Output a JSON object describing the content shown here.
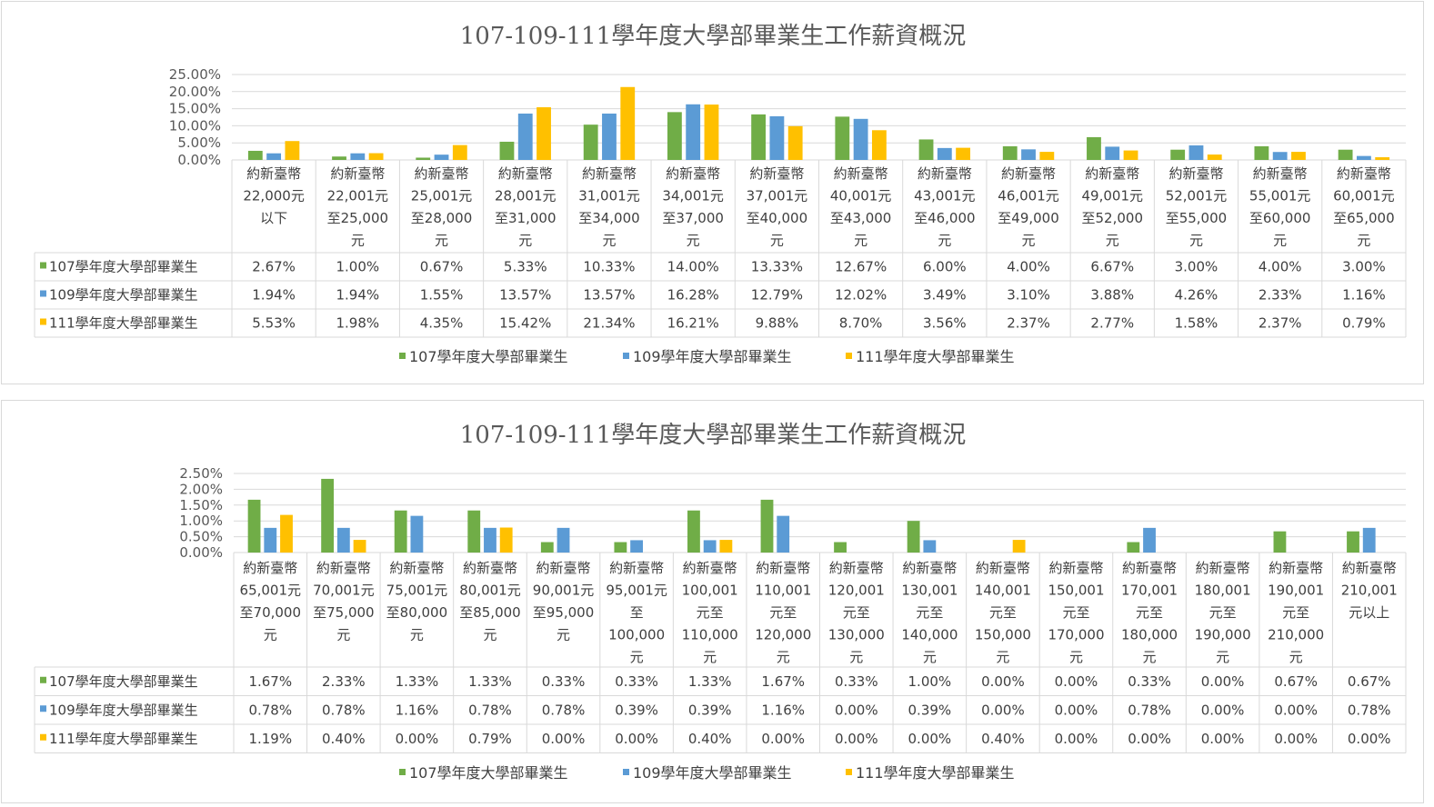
{
  "chart_data": [
    {
      "type": "bar",
      "title": "107-109-111學年度大學部畢業生工作薪資概況",
      "ylim": [
        0,
        25
      ],
      "yticks": [
        "25.00%",
        "20.00%",
        "15.00%",
        "10.00%",
        "5.00%",
        "0.00%"
      ],
      "grid": true,
      "legend_position": "bottom",
      "categories": [
        [
          "約新臺幣",
          "22,000元",
          "以下"
        ],
        [
          "約新臺幣",
          "22,001元",
          "至25,000",
          "元"
        ],
        [
          "約新臺幣",
          "25,001元",
          "至28,000",
          "元"
        ],
        [
          "約新臺幣",
          "28,001元",
          "至31,000",
          "元"
        ],
        [
          "約新臺幣",
          "31,001元",
          "至34,000",
          "元"
        ],
        [
          "約新臺幣",
          "34,001元",
          "至37,000",
          "元"
        ],
        [
          "約新臺幣",
          "37,001元",
          "至40,000",
          "元"
        ],
        [
          "約新臺幣",
          "40,001元",
          "至43,000",
          "元"
        ],
        [
          "約新臺幣",
          "43,001元",
          "至46,000",
          "元"
        ],
        [
          "約新臺幣",
          "46,001元",
          "至49,000",
          "元"
        ],
        [
          "約新臺幣",
          "49,001元",
          "至52,000",
          "元"
        ],
        [
          "約新臺幣",
          "52,001元",
          "至55,000",
          "元"
        ],
        [
          "約新臺幣",
          "55,001元",
          "至60,000",
          "元"
        ],
        [
          "約新臺幣",
          "60,001元",
          "至65,000",
          "元"
        ]
      ],
      "series": [
        {
          "name": "107學年度大學部畢業生",
          "color": "#70ad47",
          "values": [
            2.67,
            1.0,
            0.67,
            5.33,
            10.33,
            14.0,
            13.33,
            12.67,
            6.0,
            4.0,
            6.67,
            3.0,
            4.0,
            3.0
          ],
          "labels": [
            "2.67%",
            "1.00%",
            "0.67%",
            "5.33%",
            "10.33%",
            "14.00%",
            "13.33%",
            "12.67%",
            "6.00%",
            "4.00%",
            "6.67%",
            "3.00%",
            "4.00%",
            "3.00%"
          ]
        },
        {
          "name": "109學年度大學部畢業生",
          "color": "#5b9bd5",
          "values": [
            1.94,
            1.94,
            1.55,
            13.57,
            13.57,
            16.28,
            12.79,
            12.02,
            3.49,
            3.1,
            3.88,
            4.26,
            2.33,
            1.16
          ],
          "labels": [
            "1.94%",
            "1.94%",
            "1.55%",
            "13.57%",
            "13.57%",
            "16.28%",
            "12.79%",
            "12.02%",
            "3.49%",
            "3.10%",
            "3.88%",
            "4.26%",
            "2.33%",
            "1.16%"
          ]
        },
        {
          "name": "111學年度大學部畢業生",
          "color": "#ffc000",
          "values": [
            5.53,
            1.98,
            4.35,
            15.42,
            21.34,
            16.21,
            9.88,
            8.7,
            3.56,
            2.37,
            2.77,
            1.58,
            2.37,
            0.79
          ],
          "labels": [
            "5.53%",
            "1.98%",
            "4.35%",
            "15.42%",
            "21.34%",
            "16.21%",
            "9.88%",
            "8.70%",
            "3.56%",
            "2.37%",
            "2.77%",
            "1.58%",
            "2.37%",
            "0.79%"
          ]
        }
      ]
    },
    {
      "type": "bar",
      "title": "107-109-111學年度大學部畢業生工作薪資概況",
      "ylim": [
        0,
        2.5
      ],
      "yticks": [
        "2.50%",
        "2.00%",
        "1.50%",
        "1.00%",
        "0.50%",
        "0.00%"
      ],
      "grid": true,
      "legend_position": "bottom",
      "categories": [
        [
          "約新臺幣",
          "65,001元",
          "至70,000",
          "元"
        ],
        [
          "約新臺幣",
          "70,001元",
          "至75,000",
          "元"
        ],
        [
          "約新臺幣",
          "75,001元",
          "至80,000",
          "元"
        ],
        [
          "約新臺幣",
          "80,001元",
          "至85,000",
          "元"
        ],
        [
          "約新臺幣",
          "90,001元",
          "至95,000",
          "元"
        ],
        [
          "約新臺幣",
          "95,001元",
          "至",
          "100,000",
          "元"
        ],
        [
          "約新臺幣",
          "100,001",
          "元至",
          "110,000",
          "元"
        ],
        [
          "約新臺幣",
          "110,001",
          "元至",
          "120,000",
          "元"
        ],
        [
          "約新臺幣",
          "120,001",
          "元至",
          "130,000",
          "元"
        ],
        [
          "約新臺幣",
          "130,001",
          "元至",
          "140,000",
          "元"
        ],
        [
          "約新臺幣",
          "140,001",
          "元至",
          "150,000",
          "元"
        ],
        [
          "約新臺幣",
          "150,001",
          "元至",
          "170,000",
          "元"
        ],
        [
          "約新臺幣",
          "170,001",
          "元至",
          "180,000",
          "元"
        ],
        [
          "約新臺幣",
          "180,001",
          "元至",
          "190,000",
          "元"
        ],
        [
          "約新臺幣",
          "190,001",
          "元至",
          "210,000",
          "元"
        ],
        [
          "約新臺幣",
          "210,001",
          "元以上"
        ]
      ],
      "series": [
        {
          "name": "107學年度大學部畢業生",
          "color": "#70ad47",
          "values": [
            1.67,
            2.33,
            1.33,
            1.33,
            0.33,
            0.33,
            1.33,
            1.67,
            0.33,
            1.0,
            0.0,
            0.0,
            0.33,
            0.0,
            0.67,
            0.67
          ],
          "labels": [
            "1.67%",
            "2.33%",
            "1.33%",
            "1.33%",
            "0.33%",
            "0.33%",
            "1.33%",
            "1.67%",
            "0.33%",
            "1.00%",
            "0.00%",
            "0.00%",
            "0.33%",
            "0.00%",
            "0.67%",
            "0.67%"
          ]
        },
        {
          "name": "109學年度大學部畢業生",
          "color": "#5b9bd5",
          "values": [
            0.78,
            0.78,
            1.16,
            0.78,
            0.78,
            0.39,
            0.39,
            1.16,
            0.0,
            0.39,
            0.0,
            0.0,
            0.78,
            0.0,
            0.0,
            0.78
          ],
          "labels": [
            "0.78%",
            "0.78%",
            "1.16%",
            "0.78%",
            "0.78%",
            "0.39%",
            "0.39%",
            "1.16%",
            "0.00%",
            "0.39%",
            "0.00%",
            "0.00%",
            "0.78%",
            "0.00%",
            "0.00%",
            "0.78%"
          ]
        },
        {
          "name": "111學年度大學部畢業生",
          "color": "#ffc000",
          "values": [
            1.19,
            0.4,
            0.0,
            0.79,
            0.0,
            0.0,
            0.4,
            0.0,
            0.0,
            0.0,
            0.4,
            0.0,
            0.0,
            0.0,
            0.0,
            0.0
          ],
          "labels": [
            "1.19%",
            "0.40%",
            "0.00%",
            "0.79%",
            "0.00%",
            "0.00%",
            "0.40%",
            "0.00%",
            "0.00%",
            "0.00%",
            "0.40%",
            "0.00%",
            "0.00%",
            "0.00%",
            "0.00%",
            "0.00%"
          ]
        }
      ]
    }
  ]
}
